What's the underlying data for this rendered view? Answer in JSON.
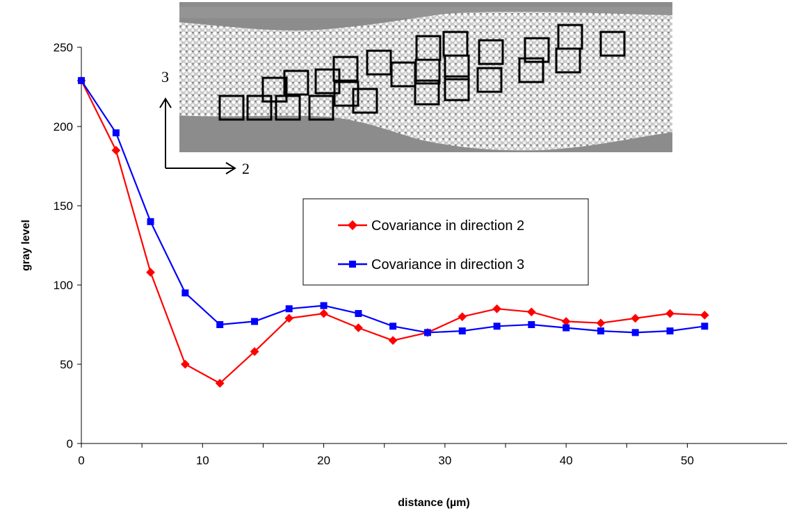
{
  "chart_data": {
    "type": "line",
    "xlabel": "distance (µm)",
    "ylabel": "gray level",
    "xlim": [
      0,
      55
    ],
    "ylim": [
      0,
      250
    ],
    "xticks": [
      0,
      10,
      20,
      30,
      40,
      50
    ],
    "yticks": [
      0,
      50,
      100,
      150,
      200,
      250
    ],
    "grid": false,
    "legend_position": "center-right",
    "series": [
      {
        "name": "Covariance in direction 2",
        "color": "#ff0000",
        "marker": "diamond",
        "x": [
          0,
          2.86,
          5.71,
          8.57,
          11.43,
          14.29,
          17.14,
          20.0,
          22.86,
          25.71,
          28.57,
          31.43,
          34.29,
          37.14,
          40.0,
          42.86,
          45.71,
          48.57,
          51.43
        ],
        "y": [
          229,
          185,
          108,
          50,
          38,
          58,
          79,
          82,
          73,
          65,
          70,
          80,
          85,
          83,
          77,
          76,
          79,
          82,
          81
        ]
      },
      {
        "name": "Covariance in direction 3",
        "color": "#0000ff",
        "marker": "square",
        "x": [
          0,
          2.86,
          5.71,
          8.57,
          11.43,
          14.29,
          17.14,
          20.0,
          22.86,
          25.71,
          28.57,
          31.43,
          34.29,
          37.14,
          40.0,
          42.86,
          45.71,
          48.57,
          51.43
        ],
        "y": [
          229,
          196,
          140,
          95,
          75,
          77,
          85,
          87,
          82,
          74,
          70,
          71,
          74,
          75,
          73,
          71,
          70,
          71,
          74
        ]
      }
    ],
    "inset": {
      "description_icon": "micrograph-image",
      "direction_labels": [
        "3",
        "2"
      ]
    }
  }
}
